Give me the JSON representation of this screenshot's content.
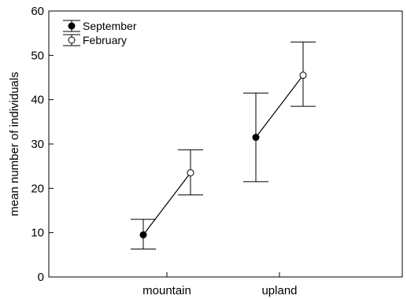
{
  "chart_data": {
    "type": "line",
    "categories": [
      "mountain",
      "upland"
    ],
    "ylabel": "mean number of individuals",
    "xlabel": "",
    "ylim": [
      0,
      60
    ],
    "yticks": [
      0,
      10,
      20,
      30,
      40,
      50,
      60
    ],
    "grid": false,
    "legend_position": "top-left",
    "series": [
      {
        "name": "September",
        "marker": "filled-circle",
        "values": [
          9.5,
          31.5
        ],
        "error_low": [
          6.3,
          21.5
        ],
        "error_high": [
          13.0,
          41.5
        ]
      },
      {
        "name": "February",
        "marker": "open-circle",
        "values": [
          23.5,
          45.5
        ],
        "error_low": [
          18.5,
          38.5
        ],
        "error_high": [
          28.7,
          53.0
        ]
      }
    ],
    "colors": {
      "line": "#000000",
      "filled_marker": "#000000",
      "open_marker": "#ffffff"
    }
  }
}
